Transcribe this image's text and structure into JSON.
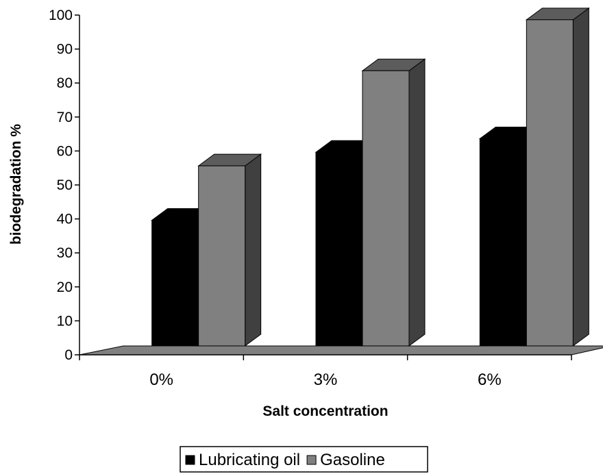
{
  "chart_data": {
    "type": "bar",
    "style": "3d-clustered-column",
    "categories": [
      "0%",
      "3%",
      "6%"
    ],
    "series": [
      {
        "name": "Lubricating oil",
        "values": [
          37,
          57,
          61
        ],
        "color": "#000000"
      },
      {
        "name": "Gasoline",
        "values": [
          53,
          81,
          96
        ],
        "color": "#808080"
      }
    ],
    "xlabel": "Salt concentration",
    "ylabel": "biodegradation %",
    "ylim": [
      0,
      100
    ],
    "yticks": [
      "0",
      "10",
      "20",
      "30",
      "40",
      "50",
      "60",
      "70",
      "80",
      "90",
      "100"
    ],
    "grid": false,
    "legend": "bottom",
    "floor_color": "#808080"
  }
}
